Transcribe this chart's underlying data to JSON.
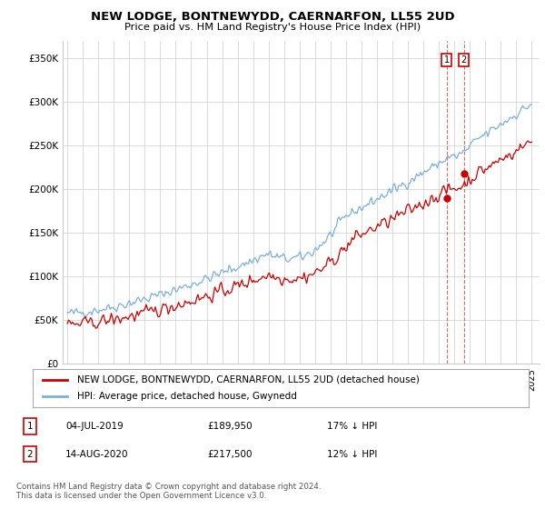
{
  "title": "NEW LODGE, BONTNEWYDD, CAERNARFON, LL55 2UD",
  "subtitle": "Price paid vs. HM Land Registry's House Price Index (HPI)",
  "ylabel_ticks": [
    "£0",
    "£50K",
    "£100K",
    "£150K",
    "£200K",
    "£250K",
    "£300K",
    "£350K"
  ],
  "ytick_values": [
    0,
    50000,
    100000,
    150000,
    200000,
    250000,
    300000,
    350000
  ],
  "ylim": [
    0,
    370000
  ],
  "hpi_color": "#7aafe0",
  "price_color": "#cc0000",
  "dashed_color": "#dd4444",
  "grid_color": "#cccccc",
  "background_color": "#ffffff",
  "sale1_label": "1",
  "sale1_date": "04-JUL-2019",
  "sale1_price": "£189,950",
  "sale1_note": "17% ↓ HPI",
  "sale1_year": 2019.5,
  "sale1_price_val": 189950,
  "sale2_label": "2",
  "sale2_date": "14-AUG-2020",
  "sale2_price": "£217,500",
  "sale2_note": "12% ↓ HPI",
  "sale2_year": 2020.62,
  "sale2_price_val": 217500,
  "footer": "Contains HM Land Registry data © Crown copyright and database right 2024.\nThis data is licensed under the Open Government Licence v3.0.",
  "legend_line1": "NEW LODGE, BONTNEWYDD, CAERNARFON, LL55 2UD (detached house)",
  "legend_line2": "HPI: Average price, detached house, Gwynedd"
}
